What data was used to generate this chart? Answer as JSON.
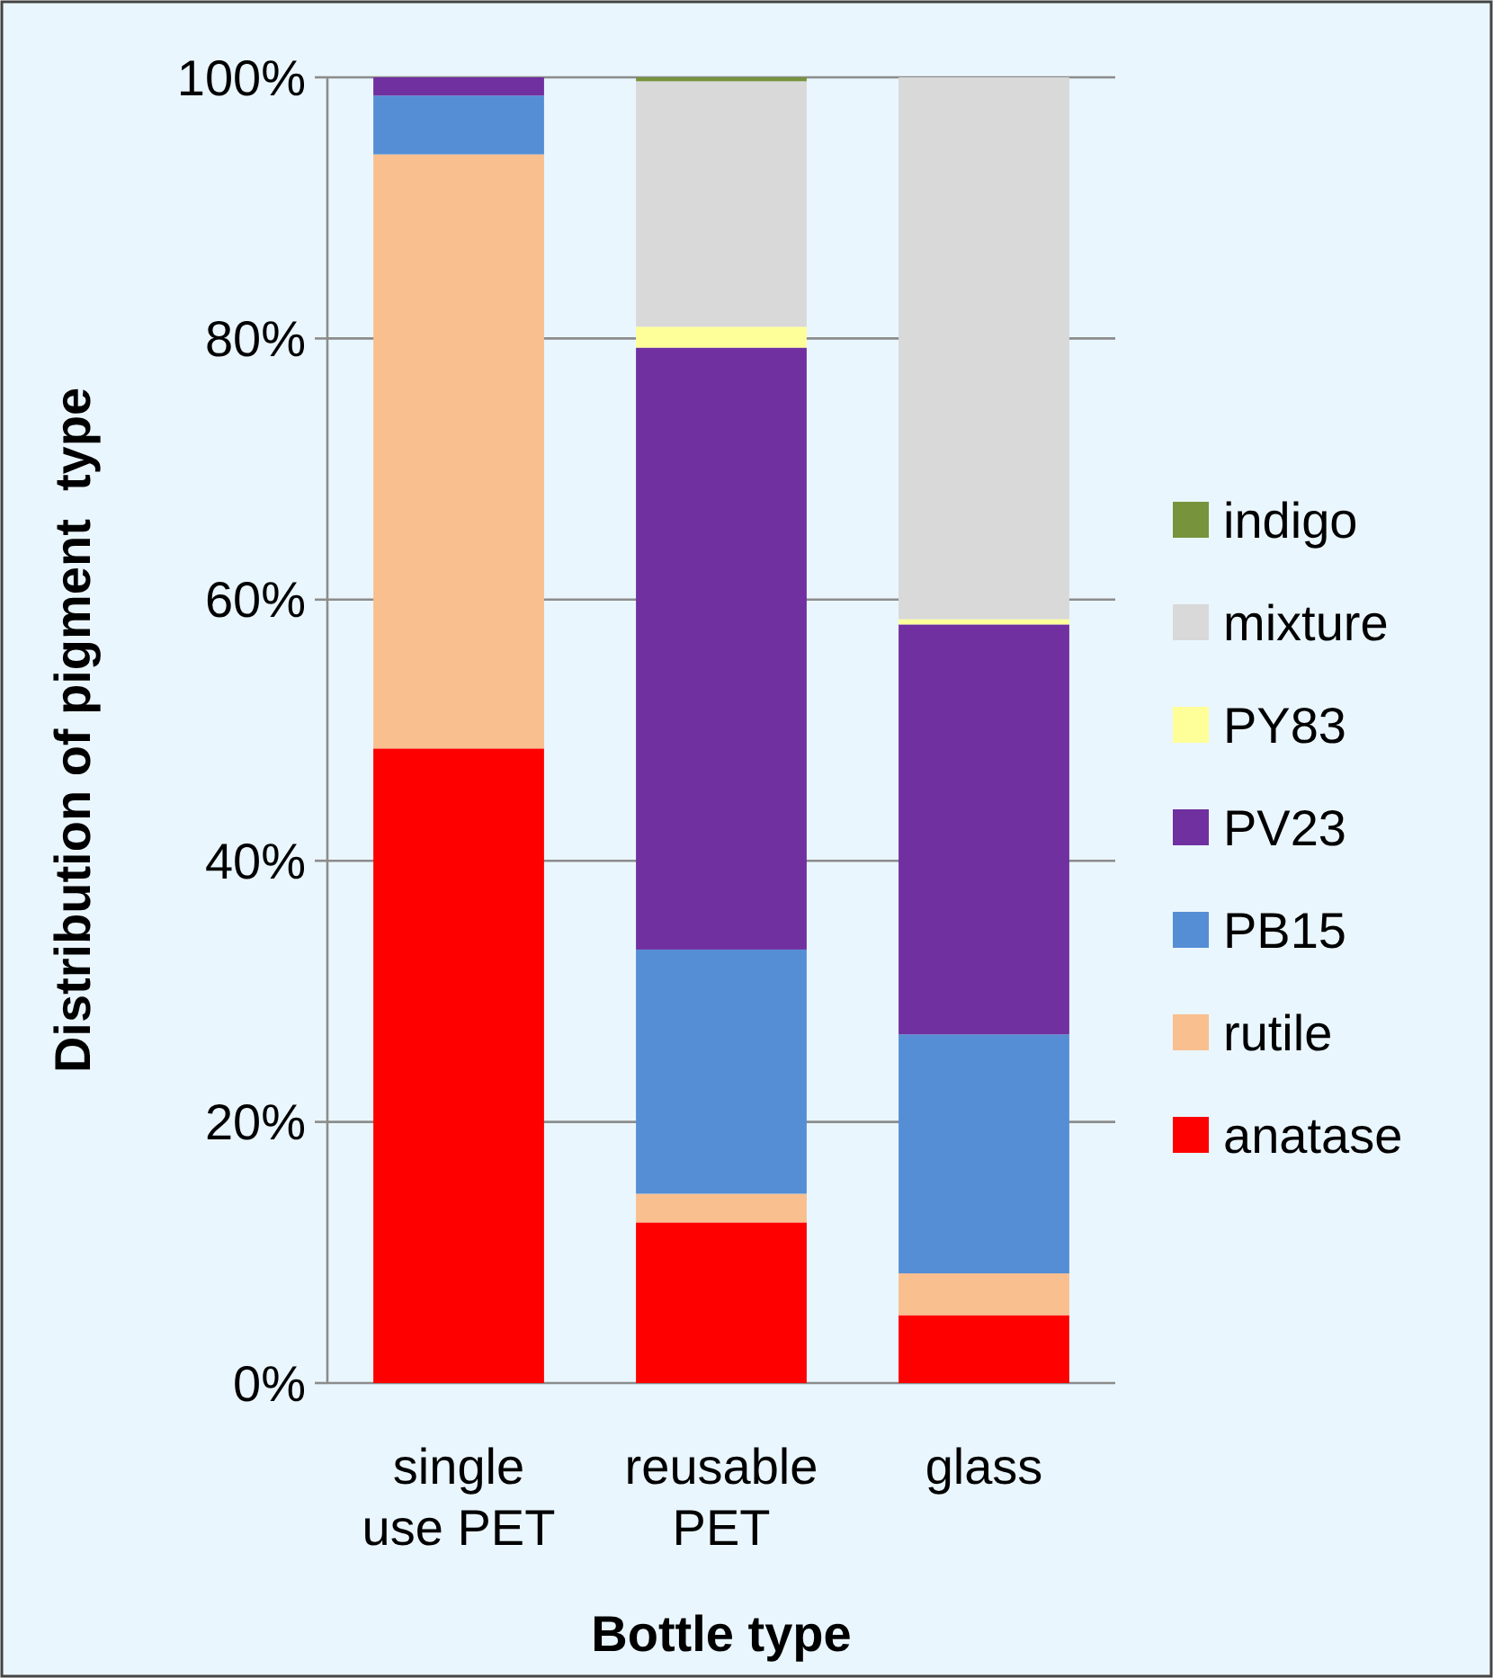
{
  "chart_data": {
    "type": "bar",
    "stacked": true,
    "xlabel": "Bottle type",
    "ylabel": "Distribution of pigment  type",
    "categories": [
      "single use PET",
      "reusable PET",
      "glass"
    ],
    "series": [
      {
        "name": "anatase",
        "color": "#ff0000",
        "values": [
          48.6,
          12.3,
          5.2
        ]
      },
      {
        "name": "rutile",
        "color": "#f9bf8f",
        "values": [
          45.5,
          2.2,
          3.2
        ]
      },
      {
        "name": "PB15",
        "color": "#558ed5",
        "values": [
          4.5,
          18.7,
          18.3
        ]
      },
      {
        "name": "PV23",
        "color": "#7030a0",
        "values": [
          1.4,
          46.1,
          31.4
        ]
      },
      {
        "name": "PY83",
        "color": "#ffff99",
        "values": [
          0,
          1.6,
          0.4
        ]
      },
      {
        "name": "mixture",
        "color": "#d9d9d9",
        "values": [
          0,
          18.8,
          41.5
        ]
      },
      {
        "name": "indigo",
        "color": "#77933c",
        "values": [
          0,
          0.3,
          0
        ]
      }
    ],
    "ylim": [
      0,
      100
    ],
    "yticks": [
      {
        "value": 0,
        "label": "0%"
      },
      {
        "value": 20,
        "label": "20%"
      },
      {
        "value": 40,
        "label": "40%"
      },
      {
        "value": 60,
        "label": "60%"
      },
      {
        "value": 80,
        "label": "80%"
      },
      {
        "value": 100,
        "label": "100%"
      }
    ],
    "grid": "y",
    "legend": "right"
  }
}
